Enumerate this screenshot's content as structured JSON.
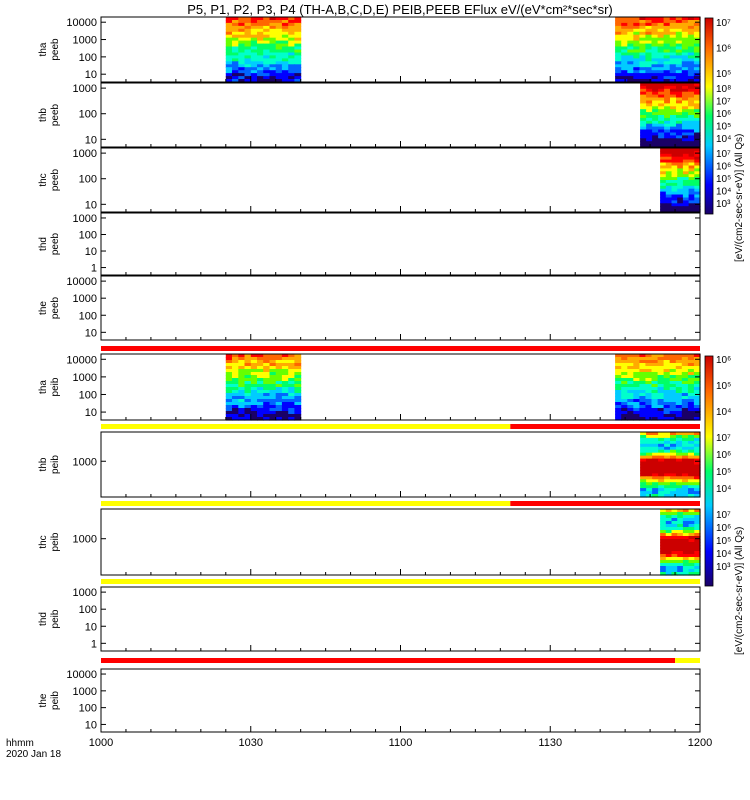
{
  "chart_data": {
    "type": "heatmap",
    "title": "P5, P1, P2, P3, P4 (TH-A,B,C,D,E) PEIB,PEEB EFlux eV/(eV*cm²*sec*sr)",
    "time_axis": {
      "label_line1": "hhmm",
      "label_line2": "2020 Jan 18",
      "ticks": [
        "1000",
        "1030",
        "1100",
        "1130",
        "1200"
      ]
    },
    "colorbar_labels": {
      "peeb": "[eV/(cm2-sec-sr-eV)] (All Qs)",
      "peib": "[eV/(cm2-sec-sr-eV)] (All Qs)"
    },
    "panels": [
      {
        "probe": "tha",
        "instrument": "peeb",
        "ylabel": [
          "tha",
          "peeb"
        ],
        "yticks": [
          "10",
          "100",
          "1000",
          "10000"
        ],
        "data_intervals": [
          [
            "10:25",
            "10:40"
          ],
          [
            "11:43",
            "12:00"
          ]
        ],
        "colorbar": {
          "ticks": [
            "10⁵",
            "10⁶",
            "10⁷"
          ]
        }
      },
      {
        "probe": "thb",
        "instrument": "peeb",
        "ylabel": [
          "thb",
          "peeb"
        ],
        "yticks": [
          "10",
          "100",
          "1000"
        ],
        "data_intervals": [
          [
            "11:48",
            "12:00"
          ]
        ],
        "colorbar": {
          "ticks": [
            "10⁴",
            "10⁵",
            "10⁶",
            "10⁷",
            "10⁸"
          ]
        }
      },
      {
        "probe": "thc",
        "instrument": "peeb",
        "ylabel": [
          "thc",
          "peeb"
        ],
        "yticks": [
          "10",
          "100",
          "1000"
        ],
        "data_intervals": [
          [
            "11:52",
            "12:00"
          ]
        ],
        "colorbar": {
          "ticks": [
            "10³",
            "10⁴",
            "10⁵",
            "10⁶",
            "10⁷"
          ]
        }
      },
      {
        "probe": "thd",
        "instrument": "peeb",
        "ylabel": [
          "thd",
          "peeb"
        ],
        "yticks": [
          "1",
          "10",
          "100",
          "1000"
        ],
        "data_intervals": []
      },
      {
        "probe": "the",
        "instrument": "peeb",
        "ylabel": [
          "the",
          "peeb"
        ],
        "yticks": [
          "10",
          "100",
          "1000",
          "10000"
        ],
        "data_intervals": []
      },
      {
        "probe": "tha",
        "instrument": "peib",
        "ylabel": [
          "tha",
          "peib"
        ],
        "yticks": [
          "10",
          "100",
          "1000",
          "10000"
        ],
        "data_intervals": [
          [
            "10:25",
            "10:40"
          ],
          [
            "11:43",
            "12:00"
          ]
        ],
        "colorbar": {
          "ticks": [
            "10⁴",
            "10⁵",
            "10⁶"
          ]
        }
      },
      {
        "probe": "thb",
        "instrument": "peib",
        "ylabel": [
          "thb",
          "peib"
        ],
        "yticks": [
          "1000"
        ],
        "data_intervals": [
          [
            "11:48",
            "12:00"
          ]
        ],
        "colorbar": {
          "ticks": [
            "10⁴",
            "10⁵",
            "10⁶",
            "10⁷"
          ]
        }
      },
      {
        "probe": "thc",
        "instrument": "peib",
        "ylabel": [
          "thc",
          "peib"
        ],
        "yticks": [
          "1000"
        ],
        "data_intervals": [
          [
            "11:52",
            "12:00"
          ]
        ],
        "colorbar": {
          "ticks": [
            "10³",
            "10⁴",
            "10⁵",
            "10⁶",
            "10⁷"
          ]
        }
      },
      {
        "probe": "thd",
        "instrument": "peib",
        "ylabel": [
          "thd",
          "peib"
        ],
        "yticks": [
          "1",
          "10",
          "100",
          "1000"
        ],
        "data_intervals": []
      },
      {
        "probe": "the",
        "instrument": "peib",
        "ylabel": [
          "the",
          "peib"
        ],
        "yticks": [
          "10",
          "100",
          "1000",
          "10000"
        ],
        "data_intervals": []
      }
    ],
    "mode_bars": [
      {
        "before_panel": 5,
        "segments": [
          {
            "from": "10:00",
            "to": "12:00",
            "color": "#ff0000"
          }
        ]
      },
      {
        "before_panel": 6,
        "segments": [
          {
            "from": "10:00",
            "to": "11:22",
            "color": "#ffff00"
          },
          {
            "from": "11:22",
            "to": "12:00",
            "color": "#ff0000"
          }
        ]
      },
      {
        "before_panel": 7,
        "segments": [
          {
            "from": "10:00",
            "to": "11:22",
            "color": "#ffff00"
          },
          {
            "from": "11:22",
            "to": "12:00",
            "color": "#ff0000"
          }
        ]
      },
      {
        "before_panel": 8,
        "segments": [
          {
            "from": "10:00",
            "to": "12:00",
            "color": "#ffff00"
          }
        ]
      },
      {
        "before_panel": 9,
        "segments": [
          {
            "from": "10:00",
            "to": "11:55",
            "color": "#ff0000"
          },
          {
            "from": "11:55",
            "to": "12:00",
            "color": "#ffff00"
          }
        ]
      }
    ]
  }
}
